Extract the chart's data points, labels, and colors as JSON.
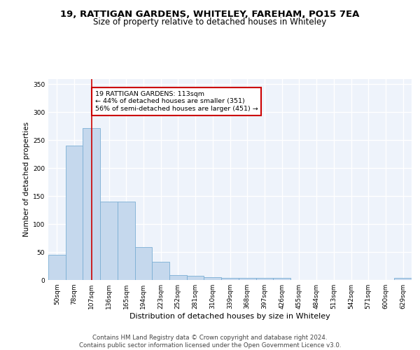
{
  "title1": "19, RATTIGAN GARDENS, WHITELEY, FAREHAM, PO15 7EA",
  "title2": "Size of property relative to detached houses in Whiteley",
  "xlabel": "Distribution of detached houses by size in Whiteley",
  "ylabel": "Number of detached properties",
  "bin_labels": [
    "50sqm",
    "78sqm",
    "107sqm",
    "136sqm",
    "165sqm",
    "194sqm",
    "223sqm",
    "252sqm",
    "281sqm",
    "310sqm",
    "339sqm",
    "368sqm",
    "397sqm",
    "426sqm",
    "455sqm",
    "484sqm",
    "513sqm",
    "542sqm",
    "571sqm",
    "600sqm",
    "629sqm"
  ],
  "bar_values": [
    45,
    240,
    272,
    140,
    140,
    59,
    32,
    9,
    7,
    5,
    4,
    4,
    4,
    4,
    0,
    0,
    0,
    0,
    0,
    0,
    4
  ],
  "bar_color": "#c5d8ed",
  "bar_edgecolor": "#7bafd4",
  "vline_x": 2,
  "annotation_text": "19 RATTIGAN GARDENS: 113sqm\n← 44% of detached houses are smaller (351)\n56% of semi-detached houses are larger (451) →",
  "annotation_box_color": "#ffffff",
  "annotation_box_edgecolor": "#cc0000",
  "ylim": [
    0,
    360
  ],
  "yticks": [
    0,
    50,
    100,
    150,
    200,
    250,
    300,
    350
  ],
  "footer": "Contains HM Land Registry data © Crown copyright and database right 2024.\nContains public sector information licensed under the Open Government Licence v3.0.",
  "bg_color": "#eef3fb",
  "grid_color": "#ffffff",
  "title1_fontsize": 9.5,
  "title2_fontsize": 8.5,
  "xlabel_fontsize": 8,
  "ylabel_fontsize": 7.5,
  "tick_fontsize": 6.5,
  "ann_fontsize": 6.8,
  "footer_fontsize": 6.2
}
